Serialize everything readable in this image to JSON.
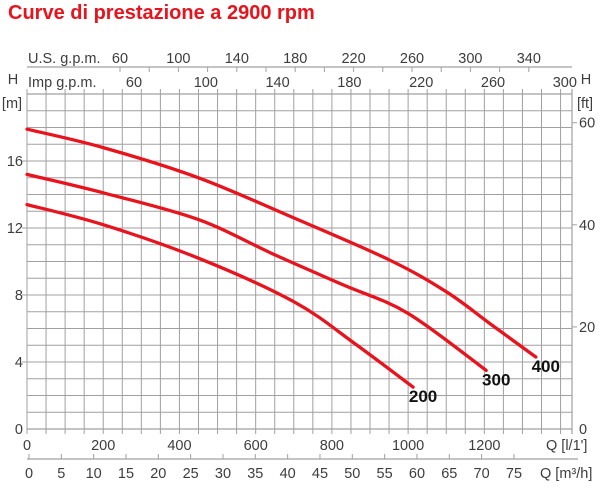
{
  "title": "Curve di prestazione a 2900 rpm",
  "colors": {
    "accent_red": "#e8131d",
    "grid": "#a0a0a0",
    "axis_text": "#3d3d3d",
    "curve_label_text": "#111111",
    "background": "#ffffff"
  },
  "axes": {
    "us_gpm": {
      "label": "U.S. g.p.m.",
      "ticks": [
        60,
        100,
        140,
        180,
        220,
        260,
        300,
        340
      ]
    },
    "imp_gpm": {
      "label": "Imp g.p.m.",
      "ticks": [
        60,
        100,
        140,
        180,
        220,
        260,
        300
      ]
    },
    "h_m": {
      "label_h": "H",
      "label_unit": "[m]",
      "ticks": [
        0,
        4,
        8,
        12,
        16
      ]
    },
    "h_ft": {
      "label_h": "H",
      "label_unit": "[ft]",
      "ticks": [
        0,
        20,
        40,
        60
      ]
    },
    "q_lmin": {
      "label": "Q [l/1']",
      "ticks": [
        0,
        200,
        400,
        600,
        800,
        1000,
        1200
      ]
    },
    "q_m3h": {
      "label": "Q [m³/h]",
      "ticks": [
        0,
        5,
        10,
        15,
        20,
        25,
        30,
        35,
        40,
        45,
        50,
        55,
        60,
        65,
        70,
        75
      ]
    }
  },
  "chart_data": {
    "type": "line",
    "title": "Curve di prestazione a 2900 rpm",
    "xlabel": "Q [l/1'] (also shown as Q [m³/h], U.S. g.p.m., Imp g.p.m.)",
    "ylabel": "H [m] (also shown as H [ft])",
    "x_unit": "l/min",
    "y_unit": "m",
    "xlim": [
      0,
      1430
    ],
    "ylim": [
      0,
      20
    ],
    "grid": true,
    "grid_step_x": 50,
    "grid_step_y": 1,
    "legend_position": "curve-end-labels",
    "series": [
      {
        "name": "200",
        "points": [
          [
            0,
            13.4
          ],
          [
            200,
            12.2
          ],
          [
            450,
            10.2
          ],
          [
            700,
            7.6
          ],
          [
            860,
            5.1
          ],
          [
            1013,
            2.5
          ]
        ]
      },
      {
        "name": "300",
        "points": [
          [
            0,
            15.2
          ],
          [
            200,
            14.1
          ],
          [
            450,
            12.5
          ],
          [
            650,
            10.4
          ],
          [
            830,
            8.6
          ],
          [
            1000,
            6.9
          ],
          [
            1205,
            3.5
          ]
        ]
      },
      {
        "name": "400",
        "points": [
          [
            0,
            17.9
          ],
          [
            200,
            16.8
          ],
          [
            450,
            15.0
          ],
          [
            700,
            12.6
          ],
          [
            950,
            10.1
          ],
          [
            1100,
            8.2
          ],
          [
            1220,
            6.2
          ],
          [
            1335,
            4.3
          ]
        ]
      }
    ]
  }
}
